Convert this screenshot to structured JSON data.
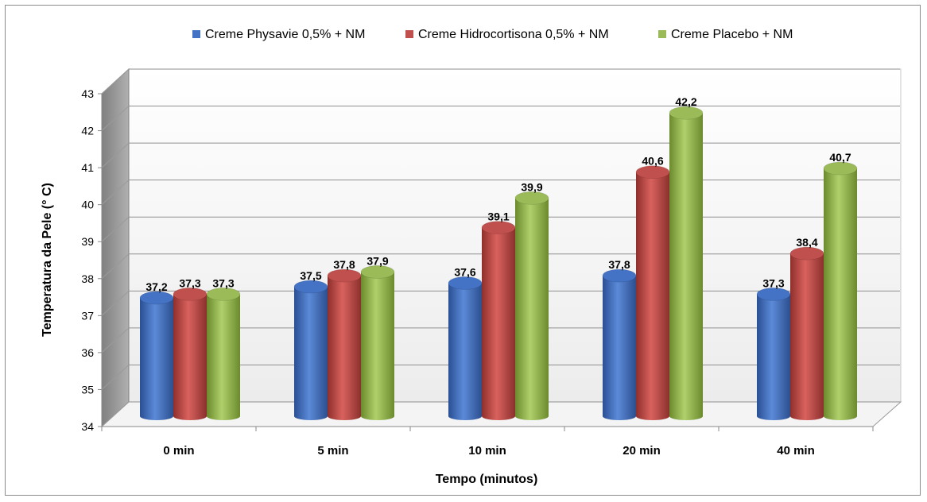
{
  "chart_data": {
    "type": "bar",
    "title": "",
    "xlabel": "Tempo (minutos)",
    "ylabel": "Temperatura da Pele (° C)",
    "ylim": [
      34,
      43
    ],
    "yticks": [
      "34",
      "35",
      "36",
      "37",
      "38",
      "39",
      "40",
      "41",
      "42",
      "43"
    ],
    "categories": [
      "0 min",
      "5 min",
      "10 min",
      "20 min",
      "40 min"
    ],
    "grid": true,
    "legend_position": "top",
    "series": [
      {
        "name": "Creme Physavie 0,5% + NM",
        "color": "#4472c4",
        "values": [
          37.2,
          37.5,
          37.6,
          37.8,
          37.3
        ],
        "labels": [
          "37,2",
          "37,5",
          "37,6",
          "37,8",
          "37,3"
        ]
      },
      {
        "name": "Creme Hidrocortisona 0,5% + NM",
        "color": "#c0504d",
        "values": [
          37.3,
          37.8,
          39.1,
          40.6,
          38.4
        ],
        "labels": [
          "37,3",
          "37,8",
          "39,1",
          "40,6",
          "38,4"
        ]
      },
      {
        "name": "Creme Placebo + NM",
        "color": "#9bbb59",
        "values": [
          37.3,
          37.9,
          39.9,
          42.2,
          40.7
        ],
        "labels": [
          "37,3",
          "37,9",
          "39,9",
          "42,2",
          "40,7"
        ]
      }
    ]
  }
}
